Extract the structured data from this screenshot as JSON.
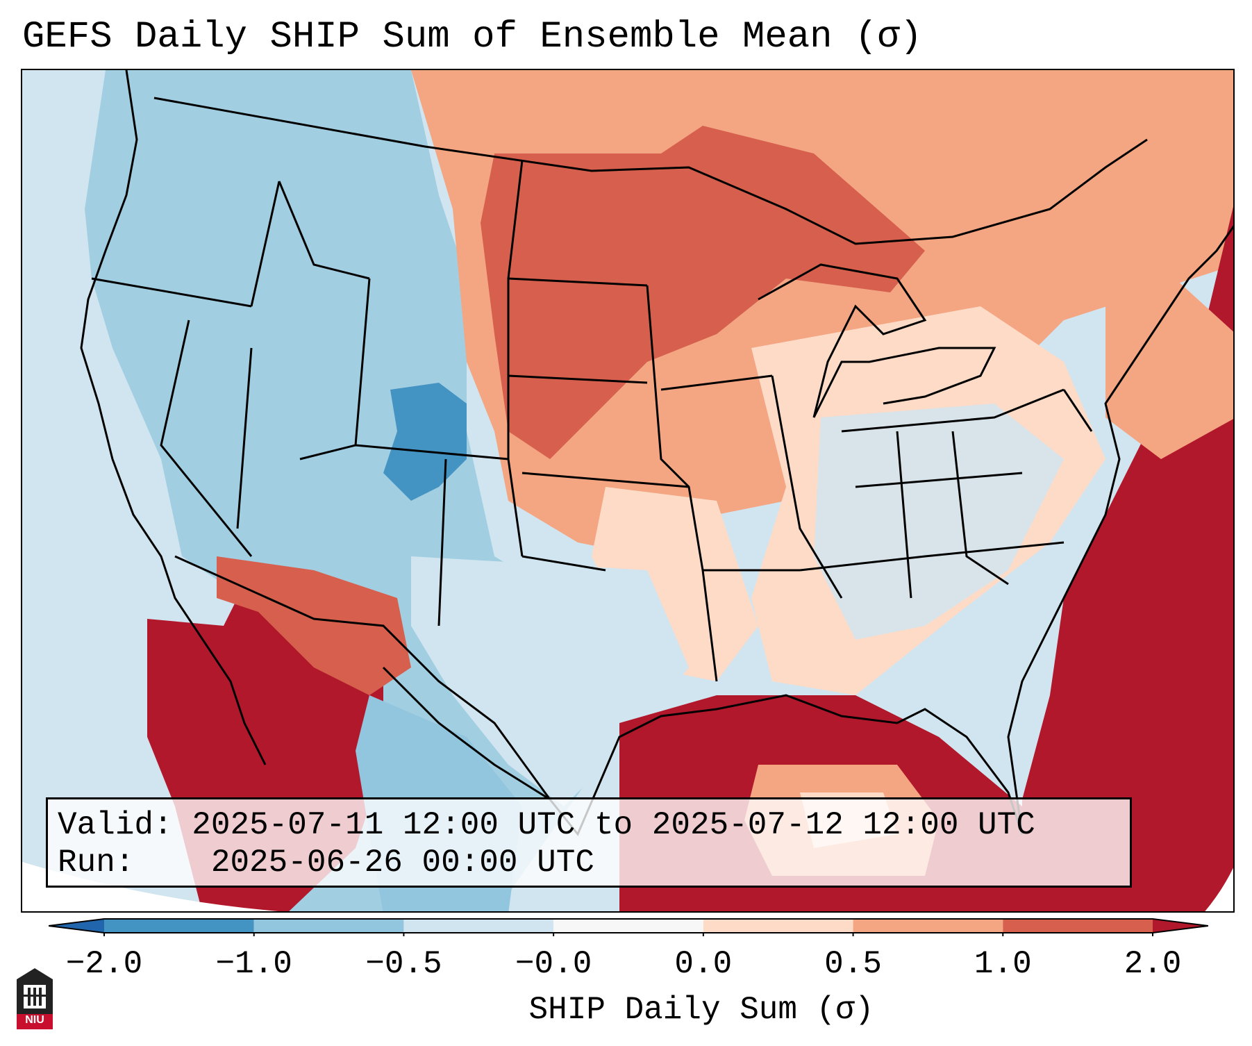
{
  "title": "GEFS Daily SHIP Sum of Ensemble Mean (σ)",
  "info": {
    "valid_label": "Valid:",
    "valid_value": "2025-07-11 12:00 UTC to 2025-07-12 12:00 UTC",
    "run_label": "Run:",
    "run_value": "2025-06-26 00:00 UTC"
  },
  "colorbar": {
    "label": "SHIP Daily Sum (σ)",
    "ticks": [
      "−2.0",
      "−1.0",
      "−0.5",
      "−0.0",
      "0.0",
      "0.5",
      "1.0",
      "2.0"
    ],
    "bin_edges": [
      -2.0,
      -1.0,
      -0.5,
      0.0,
      0.5,
      1.0,
      2.0
    ],
    "colors": [
      "#2166ac",
      "#4393c3",
      "#92c5de",
      "#d1e5f0",
      "#f7f7f7",
      "#fddbc7",
      "#f4a582",
      "#d6604d",
      "#b2182b"
    ],
    "extend": "both"
  },
  "logo": {
    "text": "NIU",
    "color": "#c8102e"
  },
  "map": {
    "region": "Contiguous United States",
    "projection": "Lambert Conformal",
    "field": "SHIP daily sum standardized anomaly"
  }
}
